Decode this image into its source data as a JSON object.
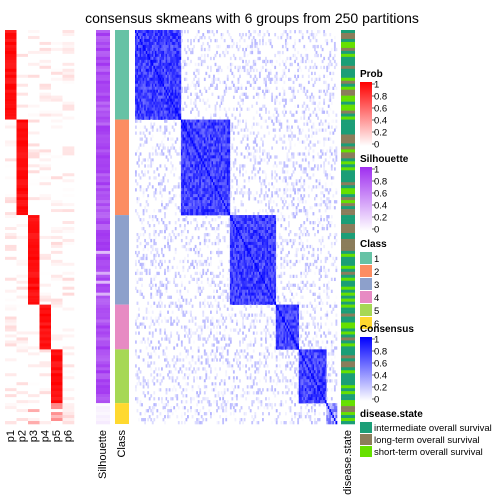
{
  "chart_data": {
    "type": "heatmap",
    "title": "consensus skmeans with 6 groups from 250 partitions",
    "prob_columns": [
      "p1",
      "p2",
      "p3",
      "p4",
      "p5",
      "p6"
    ],
    "annotation_labels": [
      "Silhouette",
      "Class",
      "disease.state"
    ],
    "group_sizes": [
      30,
      32,
      30,
      15,
      18,
      7
    ],
    "legends": {
      "prob": {
        "title": "Prob",
        "ticks": [
          "1",
          "0.8",
          "0.6",
          "0.4",
          "0.2",
          "0"
        ],
        "low_color": "#ffffff",
        "high_color": "#ff0000"
      },
      "silhouette": {
        "title": "Silhouette",
        "ticks": [
          "1",
          "0.8",
          "0.6",
          "0.4",
          "0.2",
          "0"
        ],
        "low_color": "#ffffff",
        "high_color": "#9f2ff0"
      },
      "class": {
        "title": "Class",
        "items": [
          {
            "label": "1",
            "color": "#66c2a5"
          },
          {
            "label": "2",
            "color": "#fc8d62"
          },
          {
            "label": "3",
            "color": "#8da0cb"
          },
          {
            "label": "4",
            "color": "#e78ac3"
          },
          {
            "label": "5",
            "color": "#a6d854"
          },
          {
            "label": "6",
            "color": "#ffd92f"
          }
        ]
      },
      "consensus": {
        "title": "Consensus",
        "ticks": [
          "1",
          "0.8",
          "0.6",
          "0.4",
          "0.2",
          "0"
        ],
        "low_color": "#ffffff",
        "high_color": "#0000ff"
      },
      "disease_state": {
        "title": "disease.state",
        "items": [
          {
            "label": "intermediate overall survival",
            "color": "#1b9e77"
          },
          {
            "label": "long-term overall survival",
            "color": "#8b7d5b"
          },
          {
            "label": "short-term overall survival",
            "color": "#66e000"
          }
        ]
      }
    }
  }
}
